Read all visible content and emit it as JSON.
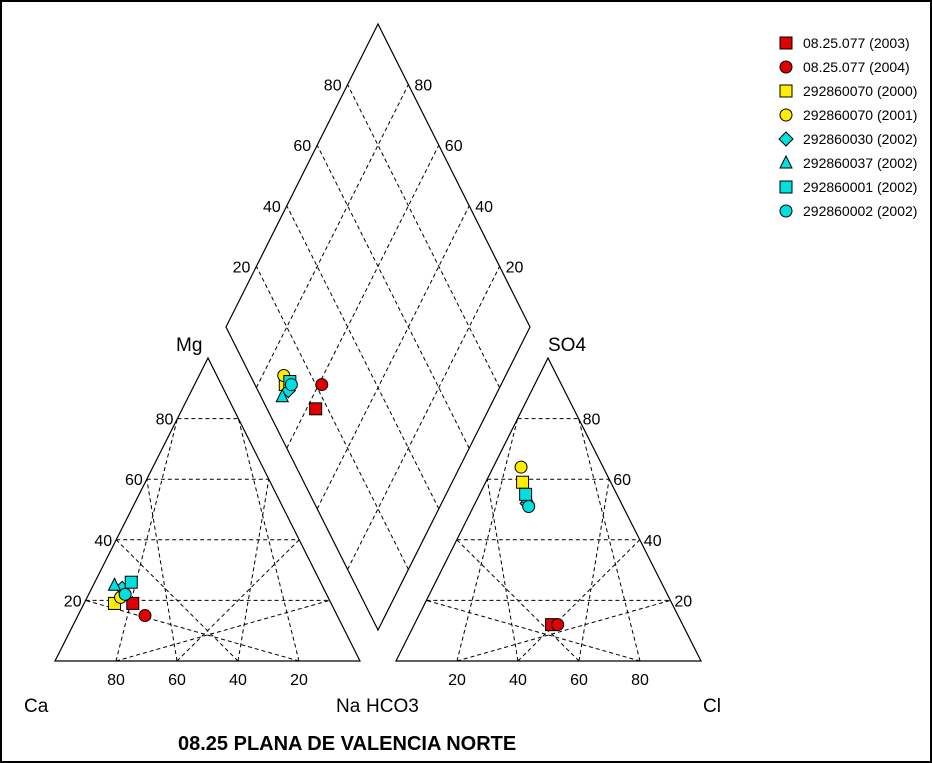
{
  "chart_data": {
    "type": "scatter",
    "subtype": "piper-diagram",
    "title": "08.25 PLANA DE VALENCIA NORTE",
    "cation_triangle": {
      "apex_labels": {
        "left": "Ca",
        "right": "Na",
        "top": "Mg"
      },
      "tick_labels": [
        "80",
        "60",
        "40",
        "20"
      ]
    },
    "anion_triangle": {
      "apex_labels": {
        "left": "HCO3",
        "right": "Cl",
        "top": "SO4"
      },
      "tick_labels": [
        "20",
        "40",
        "60",
        "80"
      ]
    },
    "diamond": {
      "tick_labels": [
        "20",
        "40",
        "60",
        "80"
      ]
    },
    "grid": true,
    "legend_placement": "top-right",
    "series": [
      {
        "name": "08.25.077 (2003)",
        "marker": "square",
        "color": "#e00000",
        "mg": 19,
        "na": 16,
        "so4": 12,
        "cl": 45
      },
      {
        "name": "08.25.077 (2004)",
        "marker": "circle",
        "color": "#e00000",
        "mg": 15,
        "na": 22,
        "so4": 12,
        "cl": 47
      },
      {
        "name": "292860070 (2000)",
        "marker": "square",
        "color": "#ffee00",
        "mg": 19,
        "na": 10,
        "so4": 59,
        "cl": 12
      },
      {
        "name": "292860070 (2001)",
        "marker": "circle",
        "color": "#ffee00",
        "mg": 21,
        "na": 11,
        "so4": 64,
        "cl": 9
      },
      {
        "name": "292860030 (2002)",
        "marker": "diamond",
        "color": "#00e0e0",
        "mg": 24,
        "na": 10,
        "so4": 52,
        "cl": 17
      },
      {
        "name": "292860037 (2002)",
        "marker": "triangle",
        "color": "#00e0e0",
        "mg": 25,
        "na": 7,
        "so4": 54,
        "cl": 16
      },
      {
        "name": "292860001 (2002)",
        "marker": "square",
        "color": "#00e0e0",
        "mg": 26,
        "na": 12,
        "so4": 55,
        "cl": 15
      },
      {
        "name": "292860002 (2002)",
        "marker": "circle",
        "color": "#00e0e0",
        "mg": 22,
        "na": 12,
        "so4": 51,
        "cl": 18
      }
    ]
  }
}
